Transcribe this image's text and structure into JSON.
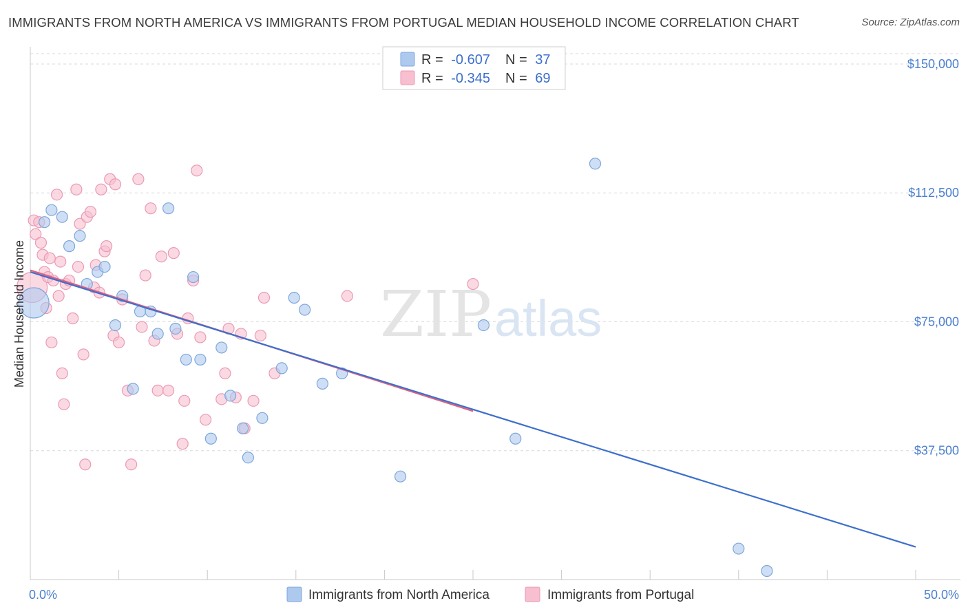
{
  "header": {
    "title": "IMMIGRANTS FROM NORTH AMERICA VS IMMIGRANTS FROM PORTUGAL MEDIAN HOUSEHOLD INCOME CORRELATION CHART",
    "source": "Source: ZipAtlas.com"
  },
  "watermark": {
    "zip": "ZIP",
    "atlas": "atlas"
  },
  "colors": {
    "blue_fill": "#aec9ee",
    "blue_stroke": "#7ea6dc",
    "blue_line": "#3d6fcc",
    "pink_fill": "#f7bfd0",
    "pink_stroke": "#eb9ab4",
    "pink_line": "#e0607e",
    "tick_label": "#4a7fd0",
    "grid": "#d8d8d8"
  },
  "legend": {
    "r_label": "R =",
    "n_label": "N =",
    "rows": [
      {
        "series": "blue",
        "r": "-0.607",
        "n": "37"
      },
      {
        "series": "pink",
        "r": "-0.345",
        "n": "69"
      }
    ]
  },
  "chart_data": {
    "type": "scatter",
    "title": "IMMIGRANTS FROM NORTH AMERICA VS IMMIGRANTS FROM PORTUGAL MEDIAN HOUSEHOLD INCOME CORRELATION CHART",
    "xlabel": "",
    "ylabel": "Median Household Income",
    "xlim": [
      0,
      50
    ],
    "ylim": [
      0,
      155000
    ],
    "x_tick_labels": [
      "0.0%",
      "50.0%"
    ],
    "y_ticks": [
      37500,
      75000,
      112500,
      150000
    ],
    "y_tick_labels": [
      "$37,500",
      "$75,000",
      "$112,500",
      "$150,000"
    ],
    "grid": true,
    "legend_position": "top-center",
    "series": [
      {
        "name": "Immigrants from North America",
        "color": "#aec9ee",
        "trend": {
          "x": [
            0,
            50
          ],
          "y": [
            89500,
            9500
          ]
        },
        "points": [
          {
            "x": 0.2,
            "y": 80500,
            "big": true
          },
          {
            "x": 0.8,
            "y": 104000
          },
          {
            "x": 1.2,
            "y": 107500
          },
          {
            "x": 1.8,
            "y": 105500
          },
          {
            "x": 2.2,
            "y": 97000
          },
          {
            "x": 2.8,
            "y": 100000
          },
          {
            "x": 3.2,
            "y": 86000
          },
          {
            "x": 3.8,
            "y": 89500
          },
          {
            "x": 4.2,
            "y": 91000
          },
          {
            "x": 4.8,
            "y": 74000
          },
          {
            "x": 5.2,
            "y": 82500
          },
          {
            "x": 5.8,
            "y": 55500
          },
          {
            "x": 6.2,
            "y": 78000
          },
          {
            "x": 6.8,
            "y": 78000
          },
          {
            "x": 7.2,
            "y": 71500
          },
          {
            "x": 7.8,
            "y": 108000
          },
          {
            "x": 8.2,
            "y": 73000
          },
          {
            "x": 8.8,
            "y": 64000
          },
          {
            "x": 9.2,
            "y": 88000
          },
          {
            "x": 9.6,
            "y": 64000
          },
          {
            "x": 10.2,
            "y": 41000
          },
          {
            "x": 10.8,
            "y": 67500
          },
          {
            "x": 11.3,
            "y": 53500
          },
          {
            "x": 12.0,
            "y": 44000
          },
          {
            "x": 12.3,
            "y": 35500
          },
          {
            "x": 13.1,
            "y": 47000
          },
          {
            "x": 14.2,
            "y": 61500
          },
          {
            "x": 14.9,
            "y": 82000
          },
          {
            "x": 15.5,
            "y": 78500
          },
          {
            "x": 16.5,
            "y": 57000
          },
          {
            "x": 17.6,
            "y": 60000
          },
          {
            "x": 20.9,
            "y": 30000
          },
          {
            "x": 25.6,
            "y": 74000
          },
          {
            "x": 27.4,
            "y": 41000
          },
          {
            "x": 31.9,
            "y": 121000
          },
          {
            "x": 40.0,
            "y": 9000
          },
          {
            "x": 41.6,
            "y": 2500
          }
        ]
      },
      {
        "name": "Immigrants from Portugal",
        "color": "#f7bfd0",
        "trend": {
          "x": [
            0,
            25
          ],
          "y": [
            90000,
            49000
          ]
        },
        "points": [
          {
            "x": 0.1,
            "y": 85000,
            "big": true
          },
          {
            "x": 0.2,
            "y": 104500
          },
          {
            "x": 0.3,
            "y": 100500
          },
          {
            "x": 0.5,
            "y": 104000
          },
          {
            "x": 0.6,
            "y": 98000
          },
          {
            "x": 0.7,
            "y": 94500
          },
          {
            "x": 0.8,
            "y": 89500
          },
          {
            "x": 0.9,
            "y": 79000
          },
          {
            "x": 1.0,
            "y": 88000
          },
          {
            "x": 1.1,
            "y": 93500
          },
          {
            "x": 1.2,
            "y": 69000
          },
          {
            "x": 1.3,
            "y": 87000
          },
          {
            "x": 1.5,
            "y": 112000
          },
          {
            "x": 1.6,
            "y": 82500
          },
          {
            "x": 1.7,
            "y": 92500
          },
          {
            "x": 1.8,
            "y": 60000
          },
          {
            "x": 1.9,
            "y": 51000
          },
          {
            "x": 2.0,
            "y": 86000
          },
          {
            "x": 2.2,
            "y": 87000
          },
          {
            "x": 2.4,
            "y": 76000
          },
          {
            "x": 2.6,
            "y": 113500
          },
          {
            "x": 2.7,
            "y": 91000
          },
          {
            "x": 2.8,
            "y": 103500
          },
          {
            "x": 3.0,
            "y": 65500
          },
          {
            "x": 3.1,
            "y": 33500
          },
          {
            "x": 3.2,
            "y": 105500
          },
          {
            "x": 3.4,
            "y": 107000
          },
          {
            "x": 3.6,
            "y": 85000
          },
          {
            "x": 3.7,
            "y": 91500
          },
          {
            "x": 3.9,
            "y": 83500
          },
          {
            "x": 4.0,
            "y": 113500
          },
          {
            "x": 4.2,
            "y": 95500
          },
          {
            "x": 4.3,
            "y": 97000
          },
          {
            "x": 4.5,
            "y": 116500
          },
          {
            "x": 4.7,
            "y": 71000
          },
          {
            "x": 4.8,
            "y": 115000
          },
          {
            "x": 5.0,
            "y": 69000
          },
          {
            "x": 5.2,
            "y": 81500
          },
          {
            "x": 5.5,
            "y": 55000
          },
          {
            "x": 5.7,
            "y": 33500
          },
          {
            "x": 6.1,
            "y": 116500
          },
          {
            "x": 6.3,
            "y": 73500
          },
          {
            "x": 6.5,
            "y": 88500
          },
          {
            "x": 6.8,
            "y": 108000
          },
          {
            "x": 7.0,
            "y": 69500
          },
          {
            "x": 7.2,
            "y": 55000
          },
          {
            "x": 7.4,
            "y": 94000
          },
          {
            "x": 7.8,
            "y": 55000
          },
          {
            "x": 8.1,
            "y": 95000
          },
          {
            "x": 8.3,
            "y": 71500
          },
          {
            "x": 8.6,
            "y": 39500
          },
          {
            "x": 8.7,
            "y": 52000
          },
          {
            "x": 8.9,
            "y": 76000
          },
          {
            "x": 9.2,
            "y": 87000
          },
          {
            "x": 9.4,
            "y": 119000
          },
          {
            "x": 9.6,
            "y": 70500
          },
          {
            "x": 9.9,
            "y": 46500
          },
          {
            "x": 10.8,
            "y": 52500
          },
          {
            "x": 11.0,
            "y": 60000
          },
          {
            "x": 11.2,
            "y": 73000
          },
          {
            "x": 11.6,
            "y": 53000
          },
          {
            "x": 11.9,
            "y": 71500
          },
          {
            "x": 12.1,
            "y": 44000
          },
          {
            "x": 12.6,
            "y": 52000
          },
          {
            "x": 13.0,
            "y": 71000
          },
          {
            "x": 13.2,
            "y": 82000
          },
          {
            "x": 13.8,
            "y": 60000
          },
          {
            "x": 17.9,
            "y": 82500
          },
          {
            "x": 25.0,
            "y": 86000
          }
        ]
      }
    ]
  }
}
